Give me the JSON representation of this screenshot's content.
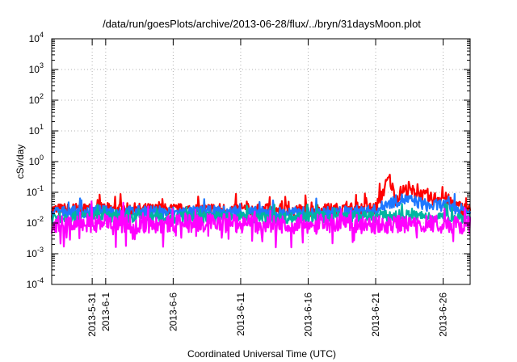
{
  "chart_data": {
    "type": "line",
    "title": "/data/run/goesPlots/archive/2013-06-28/flux/../bryn/31daysMoon.plot",
    "xlabel": "Coordinated Universal Time (UTC)",
    "ylabel": "cSv/day",
    "yscale": "log",
    "ylim": [
      0.0001,
      10000
    ],
    "y_ticks": [
      {
        "base": "10",
        "exp": "-4",
        "value": 0.0001
      },
      {
        "base": "10",
        "exp": "-3",
        "value": 0.001
      },
      {
        "base": "10",
        "exp": "-2",
        "value": 0.01
      },
      {
        "base": "10",
        "exp": "-1",
        "value": 0.1
      },
      {
        "base": "10",
        "exp": "0",
        "value": 1
      },
      {
        "base": "10",
        "exp": "1",
        "value": 10
      },
      {
        "base": "10",
        "exp": "2",
        "value": 100
      },
      {
        "base": "10",
        "exp": "3",
        "value": 1000
      },
      {
        "base": "10",
        "exp": "4",
        "value": 10000
      }
    ],
    "xlim": [
      "2013-05-28",
      "2013-06-28"
    ],
    "x_ticks": [
      "2013-5-31",
      "2013-6-1",
      "2013-6-6",
      "2013-6-11",
      "2013-6-16",
      "2013-6-21",
      "2013-6-26"
    ],
    "x_tick_dates": [
      "2013-05-31",
      "2013-06-01",
      "2013-06-06",
      "2013-06-11",
      "2013-06-16",
      "2013-06-21",
      "2013-06-26"
    ],
    "grid": true,
    "legend": "none",
    "series": [
      {
        "color": "#ff0000",
        "points": [
          [
            "2013-05-28",
            0.026
          ],
          [
            "2013-05-31",
            0.028
          ],
          [
            "2013-06-03",
            0.027
          ],
          [
            "2013-06-06",
            0.026
          ],
          [
            "2013-06-09",
            0.027
          ],
          [
            "2013-06-12",
            0.026
          ],
          [
            "2013-06-15",
            0.025
          ],
          [
            "2013-06-18",
            0.027
          ],
          [
            "2013-06-21",
            0.03
          ],
          [
            "2013-06-22",
            0.3
          ],
          [
            "2013-06-22.5",
            0.06
          ],
          [
            "2013-06-23",
            0.12
          ],
          [
            "2013-06-24",
            0.1
          ],
          [
            "2013-06-25",
            0.06
          ],
          [
            "2013-06-26",
            0.07
          ],
          [
            "2013-06-27",
            0.035
          ],
          [
            "2013-06-28",
            0.025
          ]
        ]
      },
      {
        "color": "#1e78ff",
        "points": [
          [
            "2013-05-28",
            0.022
          ],
          [
            "2013-05-31",
            0.024
          ],
          [
            "2013-06-03",
            0.023
          ],
          [
            "2013-06-06",
            0.022
          ],
          [
            "2013-06-09",
            0.023
          ],
          [
            "2013-06-12",
            0.022
          ],
          [
            "2013-06-15",
            0.021
          ],
          [
            "2013-06-18",
            0.022
          ],
          [
            "2013-06-21",
            0.025
          ],
          [
            "2013-06-22",
            0.045
          ],
          [
            "2013-06-23",
            0.06
          ],
          [
            "2013-06-24",
            0.05
          ],
          [
            "2013-06-25",
            0.035
          ],
          [
            "2013-06-26",
            0.04
          ],
          [
            "2013-06-27",
            0.03
          ],
          [
            "2013-06-28",
            0.022
          ]
        ]
      },
      {
        "color": "#00b5a0",
        "points": [
          [
            "2013-05-28",
            0.015
          ],
          [
            "2013-05-31",
            0.016
          ],
          [
            "2013-06-03",
            0.015
          ],
          [
            "2013-06-06",
            0.015
          ],
          [
            "2013-06-09",
            0.016
          ],
          [
            "2013-06-12",
            0.015
          ],
          [
            "2013-06-15",
            0.015
          ],
          [
            "2013-06-18",
            0.016
          ],
          [
            "2013-06-21",
            0.016
          ],
          [
            "2013-06-23",
            0.018
          ],
          [
            "2013-06-25",
            0.016
          ],
          [
            "2013-06-28",
            0.015
          ]
        ]
      },
      {
        "color": "#ff00ff",
        "points": [
          [
            "2013-05-28",
            0.009
          ],
          [
            "2013-05-31",
            0.01
          ],
          [
            "2013-06-03",
            0.009
          ],
          [
            "2013-06-06",
            0.009
          ],
          [
            "2013-06-09",
            0.01
          ],
          [
            "2013-06-12",
            0.009
          ],
          [
            "2013-06-15",
            0.009
          ],
          [
            "2013-06-18",
            0.01
          ],
          [
            "2013-06-21",
            0.009
          ],
          [
            "2013-06-24",
            0.009
          ],
          [
            "2013-06-28",
            0.009
          ]
        ]
      }
    ]
  }
}
